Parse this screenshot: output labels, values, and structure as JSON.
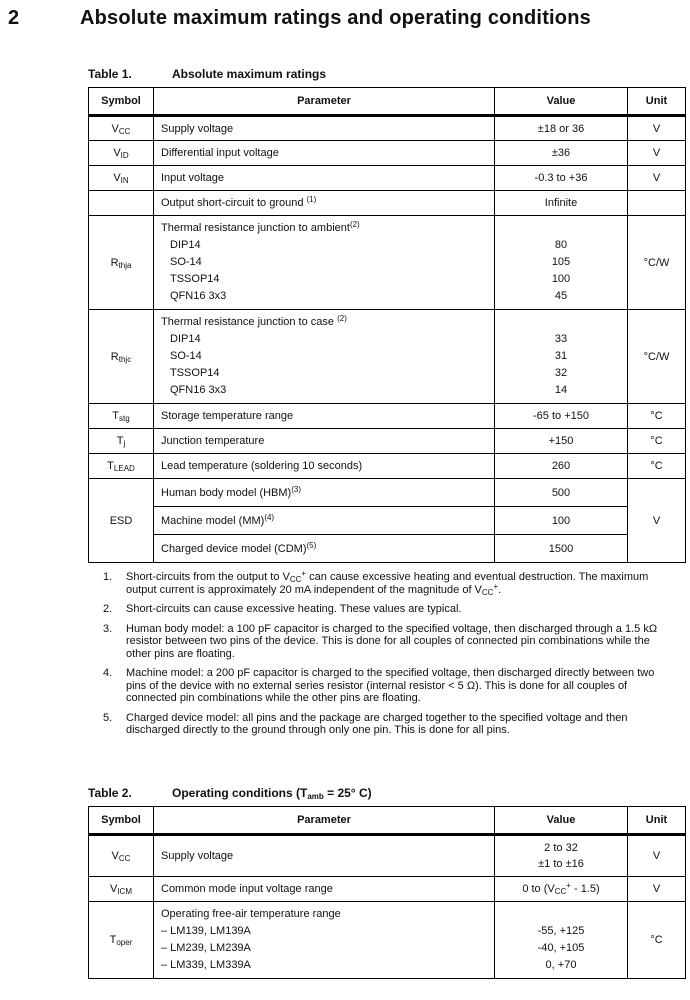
{
  "page": {
    "section_number": "2",
    "section_title": "Absolute maximum ratings and operating conditions"
  },
  "table1": {
    "caption_label": "Table 1.",
    "caption": [
      [
        "t",
        "Absolute maximum ratings"
      ]
    ],
    "headers": [
      "Symbol",
      "Parameter",
      "Value",
      "Unit"
    ],
    "rows_a": [
      {
        "symbol": [
          [
            "t",
            "V"
          ],
          [
            "sub",
            "CC"
          ]
        ],
        "parameter": [
          [
            "t",
            "Supply voltage"
          ]
        ],
        "value": "±18 or 36",
        "unit": "V"
      },
      {
        "symbol": [
          [
            "t",
            "V"
          ],
          [
            "sub",
            "ID"
          ]
        ],
        "parameter": [
          [
            "t",
            "Differential input voltage"
          ]
        ],
        "value": "±36",
        "unit": "V"
      },
      {
        "symbol": [
          [
            "t",
            "V"
          ],
          [
            "sub",
            "IN"
          ]
        ],
        "parameter": [
          [
            "t",
            "Input voltage"
          ]
        ],
        "value": "-0.3 to +36",
        "unit": "V"
      },
      {
        "symbol": [],
        "parameter": [
          [
            "t",
            "Output short-circuit to ground "
          ],
          [
            "sup",
            "(1)"
          ]
        ],
        "value": "Infinite",
        "unit": ""
      }
    ],
    "thermal": [
      {
        "symbol": [
          [
            "t",
            "R"
          ],
          [
            "sub",
            "thja"
          ]
        ],
        "title": [
          [
            "t",
            "Thermal resistance junction to ambient"
          ],
          [
            "sup",
            "(2)"
          ]
        ],
        "packages": [
          "DIP14",
          "SO-14",
          "TSSOP14",
          "QFN16 3x3"
        ],
        "values": [
          "80",
          "105",
          "100",
          "45"
        ],
        "unit": "°C/W"
      },
      {
        "symbol": [
          [
            "t",
            "R"
          ],
          [
            "sub",
            "thjc"
          ]
        ],
        "title": [
          [
            "t",
            "Thermal resistance junction to case "
          ],
          [
            "sup",
            "(2)"
          ]
        ],
        "packages": [
          "DIP14",
          "SO-14",
          "TSSOP14",
          "QFN16 3x3"
        ],
        "values": [
          "33",
          "31",
          "32",
          "14"
        ],
        "unit": "°C/W"
      }
    ],
    "rows_b": [
      {
        "symbol": [
          [
            "t",
            "T"
          ],
          [
            "sub",
            "stg"
          ]
        ],
        "parameter": [
          [
            "t",
            "Storage temperature range"
          ]
        ],
        "value": "-65 to +150",
        "unit": "°C"
      },
      {
        "symbol": [
          [
            "t",
            "T"
          ],
          [
            "sub",
            "j"
          ]
        ],
        "parameter": [
          [
            "t",
            "Junction temperature"
          ]
        ],
        "value": "+150",
        "unit": "°C"
      },
      {
        "symbol": [
          [
            "t",
            "T"
          ],
          [
            "sub",
            "LEAD"
          ]
        ],
        "parameter": [
          [
            "t",
            "Lead temperature (soldering 10 seconds)"
          ]
        ],
        "value": "260",
        "unit": "°C"
      }
    ],
    "esd": {
      "symbol": "ESD",
      "unit": "V",
      "rows": [
        {
          "parameter": [
            [
              "t",
              "Human body model (HBM)"
            ],
            [
              "sup",
              "(3)"
            ]
          ],
          "value": "500"
        },
        {
          "parameter": [
            [
              "t",
              "Machine model (MM)"
            ],
            [
              "sup",
              "(4)"
            ]
          ],
          "value": "100"
        },
        {
          "parameter": [
            [
              "t",
              "Charged device model (CDM)"
            ],
            [
              "sup",
              "(5)"
            ]
          ],
          "value": "1500"
        }
      ]
    }
  },
  "footnotes": [
    {
      "num": "1.",
      "text": [
        [
          "t",
          "Short-circuits from the output to V"
        ],
        [
          "sub",
          "CC"
        ],
        [
          "sup",
          "+"
        ],
        [
          "t",
          " can cause excessive heating and eventual destruction. The maximum output current is approximately 20 mA independent of the magnitude of V"
        ],
        [
          "sub",
          "CC"
        ],
        [
          "sup",
          "+"
        ],
        [
          "t",
          "."
        ]
      ]
    },
    {
      "num": "2.",
      "text": [
        [
          "t",
          "Short-circuits can cause excessive heating. These values are typical."
        ]
      ]
    },
    {
      "num": "3.",
      "text": [
        [
          "t",
          "Human body model: a 100 pF capacitor is charged to the specified voltage, then discharged through a 1.5 kΩ resistor between two pins of the device. This is done for all couples of connected pin combinations while the other pins are floating."
        ]
      ]
    },
    {
      "num": "4.",
      "text": [
        [
          "t",
          "Machine model: a 200 pF capacitor is charged to the specified voltage, then discharged directly between two pins of the device with no external series resistor (internal resistor < 5 Ω). This is done for all couples of connected pin combinations while the other pins are floating."
        ]
      ]
    },
    {
      "num": "5.",
      "text": [
        [
          "t",
          "Charged device model: all pins and the package are charged together to the specified voltage and then discharged directly to the ground through only one pin. This is done for all pins."
        ]
      ]
    }
  ],
  "table2": {
    "caption_label": "Table 2.",
    "caption": [
      [
        "t",
        "Operating conditions (T"
      ],
      [
        "sub",
        "amb"
      ],
      [
        "t",
        " = 25° C)"
      ]
    ],
    "headers": [
      "Symbol",
      "Parameter",
      "Value",
      "Unit"
    ],
    "vcc_row": {
      "symbol": [
        [
          "t",
          "V"
        ],
        [
          "sub",
          "CC"
        ]
      ],
      "parameter": [
        [
          "t",
          "Supply voltage"
        ]
      ],
      "value_lines": [
        "2 to 32",
        "±1 to ±16"
      ],
      "unit": "V"
    },
    "vicm_row": {
      "symbol": [
        [
          "t",
          "V"
        ],
        [
          "sub",
          "ICM"
        ]
      ],
      "parameter": [
        [
          "t",
          "Common mode input voltage range"
        ]
      ],
      "value": [
        [
          "t",
          "0 to (V"
        ],
        [
          "sub",
          "CC"
        ],
        [
          "sup",
          "+"
        ],
        [
          "t",
          " - 1.5)"
        ]
      ],
      "unit": "V"
    },
    "toper_row": {
      "symbol": [
        [
          "t",
          "T"
        ],
        [
          "sub",
          "oper"
        ]
      ],
      "title": "Operating free-air temperature range",
      "items": [
        "– LM139, LM139A",
        "– LM239, LM239A",
        "– LM339, LM339A"
      ],
      "values": [
        "-55, +125",
        "-40, +105",
        "0, +70"
      ],
      "unit": "°C"
    }
  }
}
